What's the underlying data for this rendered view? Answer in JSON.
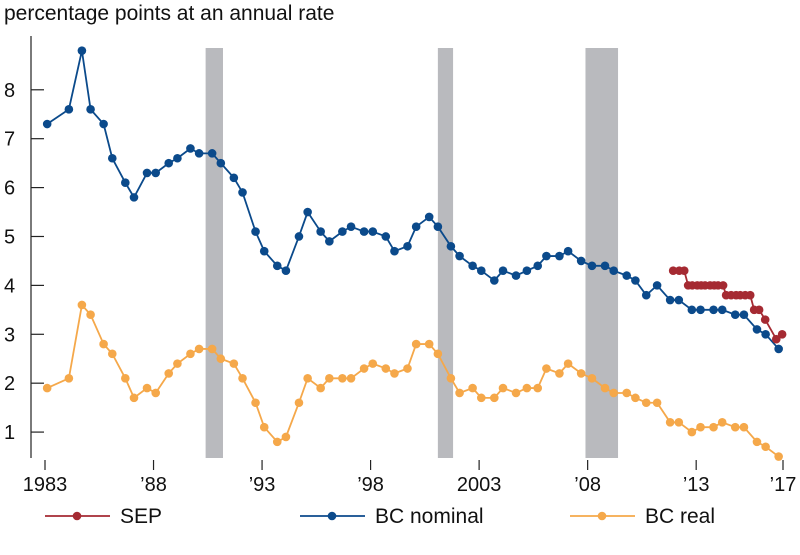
{
  "chart_data": {
    "type": "line",
    "title": "percentage points at an annual rate",
    "xlabel": "",
    "ylabel": "",
    "xlim": [
      1983,
      2017
    ],
    "ylim": [
      0.47,
      9.1
    ],
    "grid": false,
    "legend_placement": "bottom",
    "x_ticks": [
      {
        "value": 1983,
        "label": "1983"
      },
      {
        "value": 1988,
        "label": "’88"
      },
      {
        "value": 1993,
        "label": "’93"
      },
      {
        "value": 1998,
        "label": "’98"
      },
      {
        "value": 2003,
        "label": "2003"
      },
      {
        "value": 2008,
        "label": "’08"
      },
      {
        "value": 2013,
        "label": "’13"
      },
      {
        "value": 2017,
        "label": "’17"
      }
    ],
    "y_ticks": [
      {
        "value": 1,
        "label": "1"
      },
      {
        "value": 2,
        "label": "2"
      },
      {
        "value": 3,
        "label": "3"
      },
      {
        "value": 4,
        "label": "4"
      },
      {
        "value": 5,
        "label": "5"
      },
      {
        "value": 6,
        "label": "6"
      },
      {
        "value": 7,
        "label": "7"
      },
      {
        "value": 8,
        "label": "8"
      }
    ],
    "recessions": [
      [
        1990.4,
        1991.2
      ],
      [
        2001.1,
        2001.8
      ],
      [
        2007.9,
        2009.4
      ]
    ],
    "series": [
      {
        "name": "SEP",
        "color": "#a52a32",
        "x": [
          2011.94,
          2012.22,
          2012.45,
          2012.63,
          2012.82,
          2013.05,
          2013.23,
          2013.41,
          2013.64,
          2013.83,
          2014.01,
          2014.24,
          2014.38,
          2014.61,
          2014.84,
          2015.03,
          2015.26,
          2015.49,
          2015.67,
          2015.9,
          2016.18,
          2016.69,
          2016.96
        ],
        "values": [
          4.3,
          4.3,
          4.3,
          4.0,
          4.0,
          4.0,
          4.0,
          4.0,
          4.0,
          4.0,
          4.0,
          4.0,
          3.8,
          3.8,
          3.8,
          3.8,
          3.8,
          3.8,
          3.5,
          3.5,
          3.3,
          2.9,
          3.0
        ]
      },
      {
        "name": "BC nominal",
        "color": "#0b4a8b",
        "x": [
          1983.1,
          1984.1,
          1984.7,
          1985.1,
          1985.7,
          1986.1,
          1986.7,
          1987.1,
          1987.7,
          1988.1,
          1988.7,
          1989.1,
          1989.7,
          1990.1,
          1990.7,
          1991.1,
          1991.7,
          1992.1,
          1992.7,
          1993.1,
          1993.7,
          1994.1,
          1994.7,
          1995.1,
          1995.7,
          1996.1,
          1996.7,
          1997.1,
          1997.7,
          1998.1,
          1998.7,
          1999.1,
          1999.7,
          2000.1,
          2000.7,
          2001.1,
          2001.7,
          2002.1,
          2002.7,
          2003.1,
          2003.7,
          2004.1,
          2004.7,
          2005.2,
          2005.7,
          2006.1,
          2006.7,
          2007.1,
          2007.7,
          2008.2,
          2008.8,
          2009.2,
          2009.8,
          2010.2,
          2010.7,
          2011.2,
          2011.8,
          2012.2,
          2012.8,
          2013.2,
          2013.8,
          2014.2,
          2014.8,
          2015.2,
          2015.8,
          2016.2,
          2016.8
        ],
        "values": [
          7.3,
          7.6,
          8.8,
          7.6,
          7.3,
          6.6,
          6.1,
          5.8,
          6.3,
          6.3,
          6.5,
          6.6,
          6.8,
          6.7,
          6.7,
          6.5,
          6.2,
          5.9,
          5.1,
          4.7,
          4.4,
          4.3,
          5.0,
          5.5,
          5.1,
          4.9,
          5.1,
          5.2,
          5.1,
          5.1,
          5.0,
          4.7,
          4.8,
          5.2,
          5.4,
          5.2,
          4.8,
          4.6,
          4.4,
          4.3,
          4.1,
          4.3,
          4.2,
          4.3,
          4.4,
          4.6,
          4.6,
          4.7,
          4.5,
          4.4,
          4.4,
          4.3,
          4.2,
          4.1,
          3.8,
          4.0,
          3.7,
          3.7,
          3.5,
          3.5,
          3.5,
          3.5,
          3.4,
          3.4,
          3.1,
          3.0,
          2.7
        ]
      },
      {
        "name": "BC real",
        "color": "#f5a84a",
        "x": [
          1983.1,
          1984.1,
          1984.7,
          1985.1,
          1985.7,
          1986.1,
          1986.7,
          1987.1,
          1987.7,
          1988.1,
          1988.7,
          1989.1,
          1989.7,
          1990.1,
          1990.7,
          1991.1,
          1991.7,
          1992.1,
          1992.7,
          1993.1,
          1993.7,
          1994.1,
          1994.7,
          1995.1,
          1995.7,
          1996.1,
          1996.7,
          1997.1,
          1997.7,
          1998.1,
          1998.7,
          1999.1,
          1999.7,
          2000.1,
          2000.7,
          2001.1,
          2001.7,
          2002.1,
          2002.7,
          2003.1,
          2003.7,
          2004.1,
          2004.7,
          2005.2,
          2005.7,
          2006.1,
          2006.7,
          2007.1,
          2007.7,
          2008.2,
          2008.8,
          2009.2,
          2009.8,
          2010.2,
          2010.7,
          2011.2,
          2011.8,
          2012.2,
          2012.8,
          2013.2,
          2013.8,
          2014.2,
          2014.8,
          2015.2,
          2015.8,
          2016.2,
          2016.8
        ],
        "values": [
          1.9,
          2.1,
          3.6,
          3.4,
          2.8,
          2.6,
          2.1,
          1.7,
          1.9,
          1.8,
          2.2,
          2.4,
          2.6,
          2.7,
          2.7,
          2.5,
          2.4,
          2.1,
          1.6,
          1.1,
          0.8,
          0.9,
          1.6,
          2.1,
          1.9,
          2.1,
          2.1,
          2.1,
          2.3,
          2.4,
          2.3,
          2.2,
          2.3,
          2.8,
          2.8,
          2.6,
          2.1,
          1.8,
          1.9,
          1.7,
          1.7,
          1.9,
          1.8,
          1.9,
          1.9,
          2.3,
          2.2,
          2.4,
          2.2,
          2.1,
          1.9,
          1.8,
          1.8,
          1.7,
          1.6,
          1.6,
          1.2,
          1.2,
          1.0,
          1.1,
          1.1,
          1.2,
          1.1,
          1.1,
          0.8,
          0.7,
          0.5
        ]
      }
    ],
    "recession_color": "#b9babe"
  }
}
